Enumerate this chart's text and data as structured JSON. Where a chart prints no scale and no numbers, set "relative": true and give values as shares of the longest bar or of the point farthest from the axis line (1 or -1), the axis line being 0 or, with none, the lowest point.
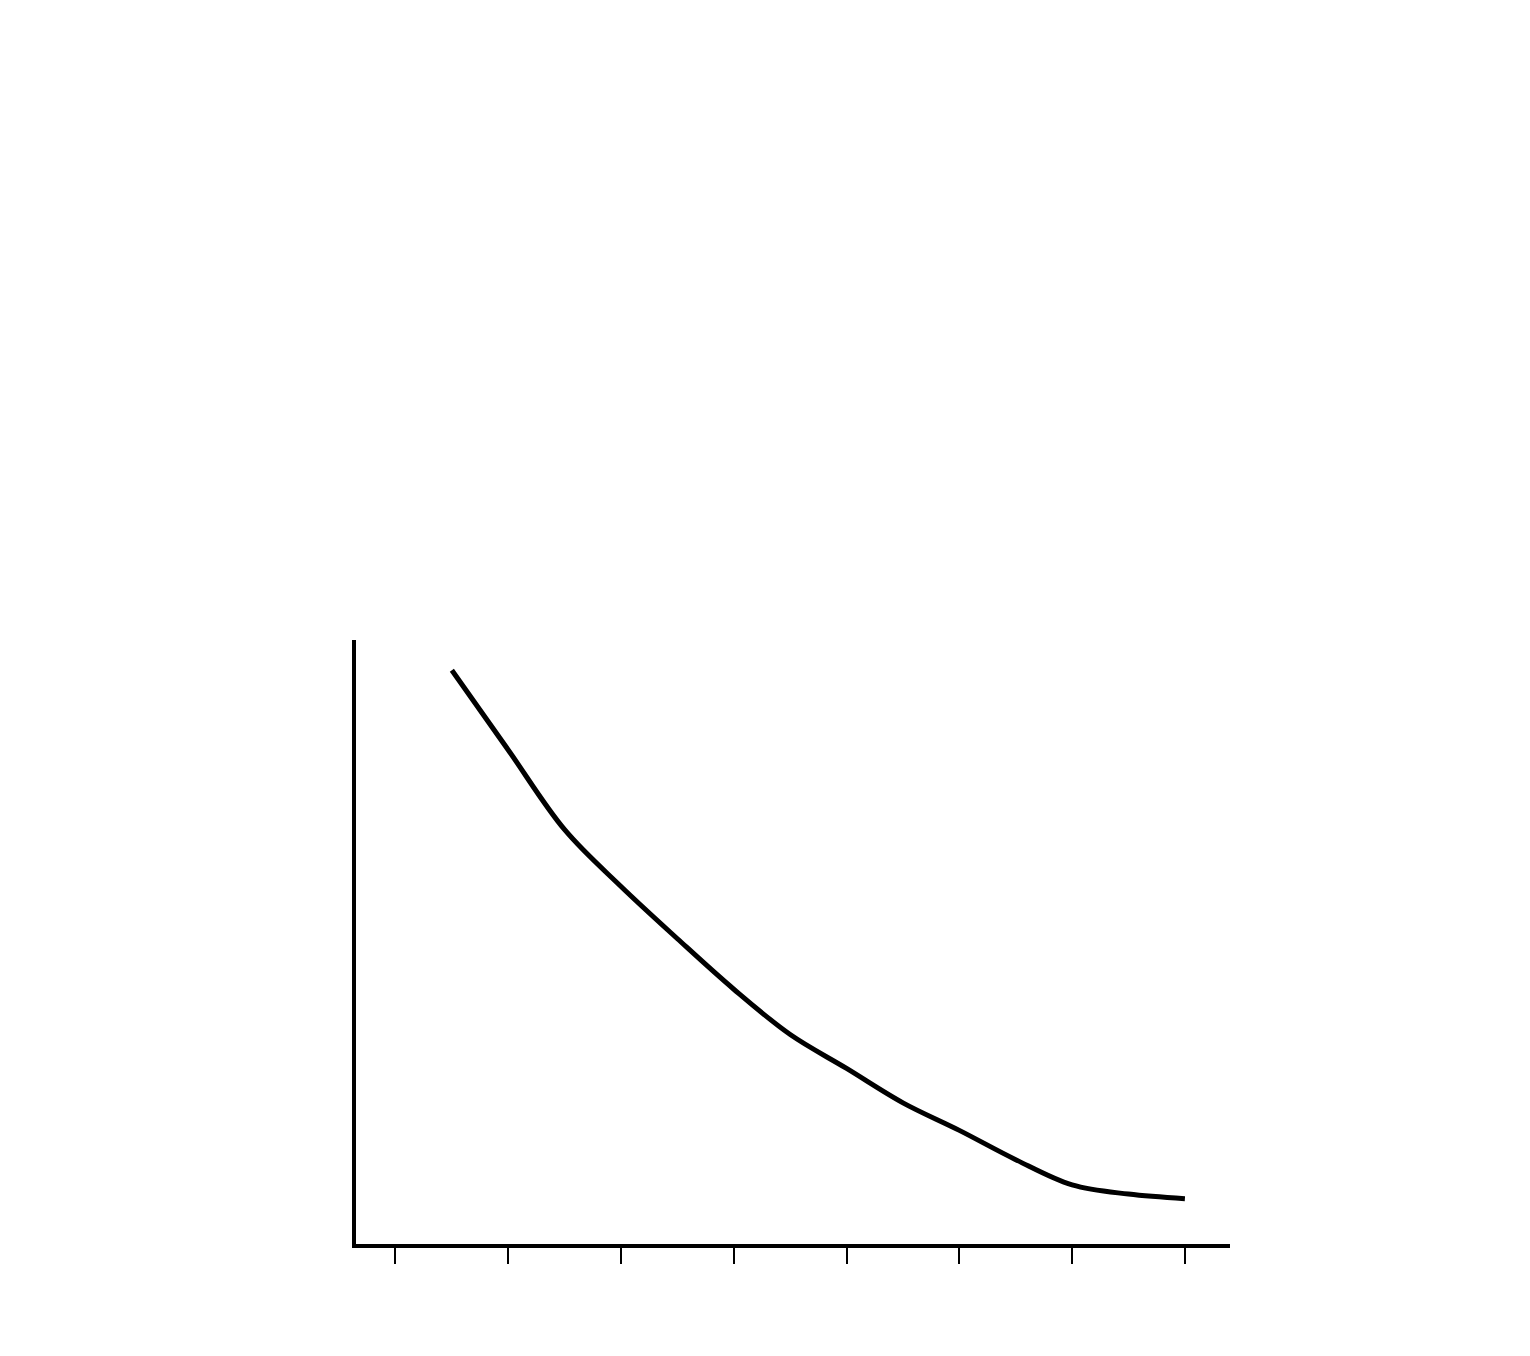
{
  "chart_data": {
    "type": "line",
    "relative": true,
    "color": "#000000",
    "marker": "none",
    "line_style": "solid",
    "legend": false,
    "categories": [
      null,
      null,
      null,
      null,
      null,
      null,
      null,
      null,
      null,
      null,
      null,
      null,
      null,
      null,
      null
    ],
    "values": [
      null,
      1,
      0.861,
      0.722,
      0.623,
      0.532,
      0.444,
      0.365,
      0.306,
      0.246,
      0.198,
      0.147,
      0.103,
      0.087,
      0.079
    ]
  }
}
